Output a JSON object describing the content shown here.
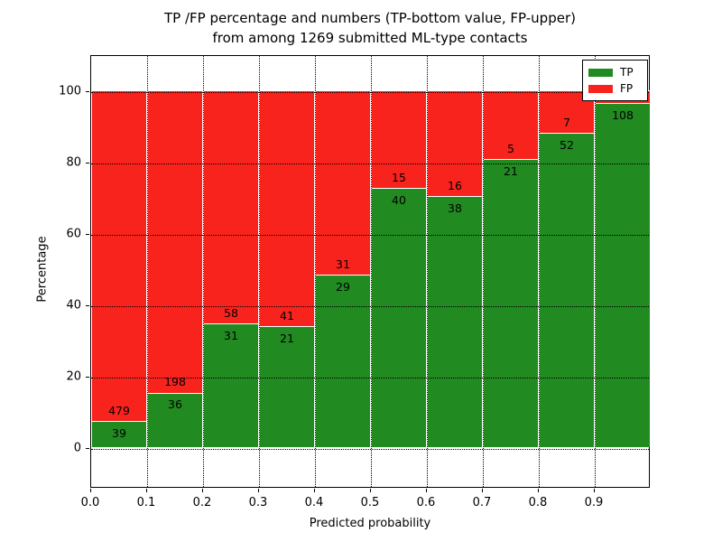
{
  "title": {
    "line1": "TP /FP percentage and numbers (TP-bottom value, FP-upper)",
    "line2": "from among 1269 submitted ML-type contacts"
  },
  "axes": {
    "xlabel": "Predicted probability",
    "ylabel": "Percentage",
    "x_tick_labels": [
      "0.0",
      "0.1",
      "0.2",
      "0.3",
      "0.4",
      "0.5",
      "0.6",
      "0.7",
      "0.8",
      "0.9"
    ],
    "y_tick_values": [
      0,
      20,
      40,
      60,
      80,
      100
    ],
    "x_range_bins": 10,
    "grid": "dotted"
  },
  "legend": {
    "position": "upper-right",
    "items": [
      {
        "label": "TP",
        "color": "#218a21"
      },
      {
        "label": "FP",
        "color": "#f8231d"
      }
    ]
  },
  "colors": {
    "tp_green": "#218a21",
    "fp_red": "#f8231d",
    "background": "#ffffff",
    "bar_edge": "#ffffff",
    "grid_line": "#000000"
  },
  "chart_data": {
    "type": "bar",
    "stacked": true,
    "normalized_to_percent": 100,
    "title": "TP /FP percentage and numbers (TP-bottom value, FP-upper) from among 1269 submitted ML-type contacts",
    "xlabel": "Predicted probability",
    "ylabel": "Percentage",
    "bin_width": 0.1,
    "bin_starts": [
      0.0,
      0.1,
      0.2,
      0.3,
      0.4,
      0.5,
      0.6,
      0.7,
      0.8,
      0.9
    ],
    "series": [
      {
        "name": "TP",
        "color": "#218a21",
        "counts": [
          39,
          36,
          31,
          21,
          29,
          40,
          38,
          21,
          52,
          108
        ]
      },
      {
        "name": "FP",
        "color": "#f8231d",
        "counts": [
          479,
          198,
          58,
          41,
          31,
          15,
          16,
          5,
          7,
          null
        ]
      }
    ],
    "tp_percent": [
      7.5,
      15.4,
      34.8,
      33.9,
      48.3,
      72.7,
      70.4,
      80.8,
      88.1,
      96.4
    ],
    "note_total_submitted": 1269,
    "ylim_visible_ticks": [
      0,
      100
    ],
    "legend_entries": [
      "TP",
      "FP"
    ]
  }
}
